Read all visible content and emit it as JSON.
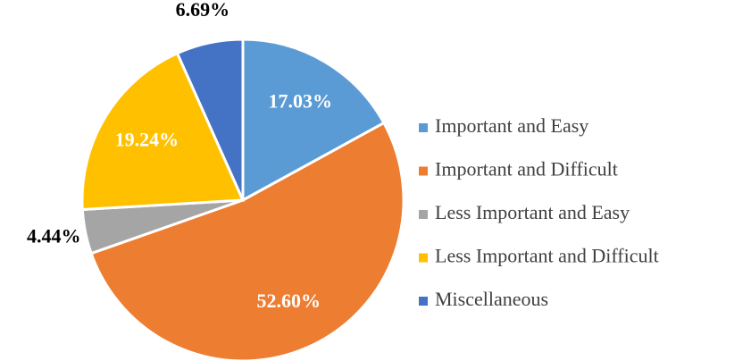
{
  "chart_data": {
    "type": "pie",
    "categories": [
      "Important and Easy",
      "Important and Difficult",
      "Less Important and Easy",
      "Less Important and Difficult",
      "Miscellaneous"
    ],
    "values": [
      17.03,
      52.6,
      4.44,
      19.24,
      6.69
    ],
    "value_labels": [
      "17.03%",
      "52.60%",
      "4.44%",
      "19.24%",
      "6.69%"
    ],
    "colors": [
      "#5b9bd5",
      "#ed7d31",
      "#a5a5a5",
      "#ffc000",
      "#4472c4"
    ],
    "legend": "right"
  }
}
